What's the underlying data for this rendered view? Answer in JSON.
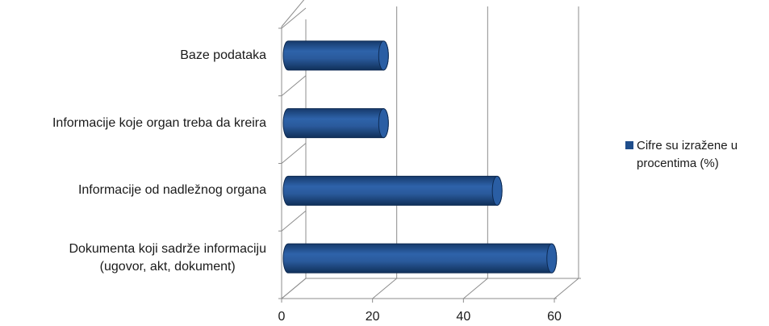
{
  "chart_data": {
    "type": "bar",
    "orientation": "horizontal",
    "style": "3d-cylinder",
    "categories": [
      "Baze podataka",
      "Informacije koje organ treba da kreira",
      "Informacije od nadležnog organa",
      "Dokumenta koji sadrže informaciju (ugovor, akt, dokument)"
    ],
    "category_lines": [
      [
        "Baze podataka"
      ],
      [
        "Informacije koje organ treba da kreira"
      ],
      [
        "Informacije od nadležnog organa"
      ],
      [
        "Dokumenta koji sadrže informaciju",
        "(ugovor, akt, dokument)"
      ]
    ],
    "series": [
      {
        "name": "Cifre su izražene u procentima (%)",
        "values": [
          21,
          21,
          46,
          58
        ]
      }
    ],
    "xlim": [
      0,
      60
    ],
    "xticks": [
      "0",
      "20",
      "40",
      "60"
    ],
    "grid": true,
    "legend": "right",
    "bar_color": "#1f4e8c"
  }
}
